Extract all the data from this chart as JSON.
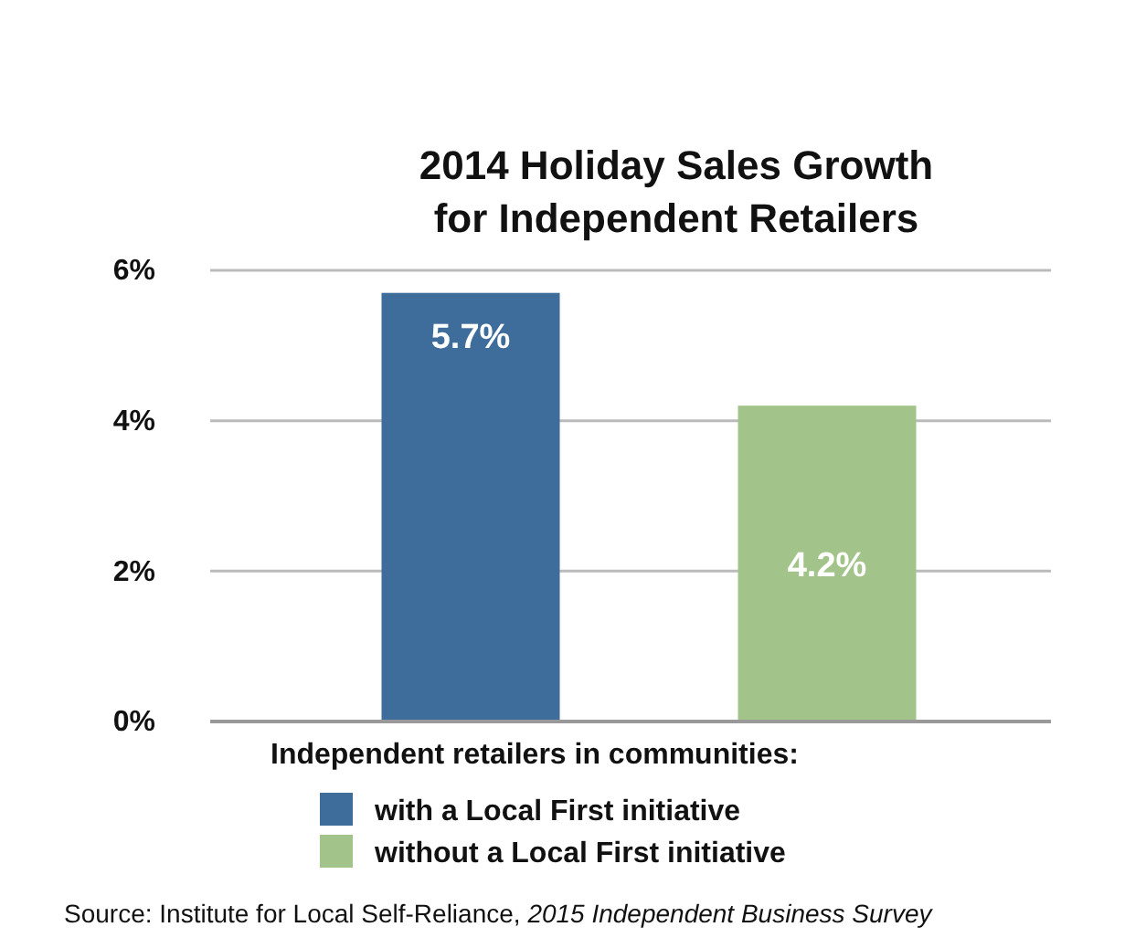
{
  "chart_data": {
    "type": "bar",
    "title": "2014 Holiday Sales Growth for Independent Retailers",
    "categories": [
      null,
      null
    ],
    "series": [
      {
        "name": "with a Local First initiative",
        "color": "#3e6d9c",
        "values": [
          5.7,
          null
        ],
        "value_labels": [
          "5.7%",
          null
        ]
      },
      {
        "name": "without a Local First initiative",
        "color": "#a2c389",
        "values": [
          null,
          4.2
        ],
        "value_labels": [
          null,
          "4.2%"
        ]
      }
    ],
    "legend_title": "Independent retailers in communities:",
    "legend": "bottom",
    "ylim": [
      0,
      6
    ],
    "yticks": [
      {
        "value": 0,
        "label": "0%"
      },
      {
        "value": 2,
        "label": "2%"
      },
      {
        "value": 4,
        "label": "4%"
      },
      {
        "value": 6,
        "label": "6%"
      }
    ],
    "grid": "y",
    "annotations": [
      "Source: Institute for Local Self-Reliance, 2015 Independent Business Survey"
    ]
  }
}
